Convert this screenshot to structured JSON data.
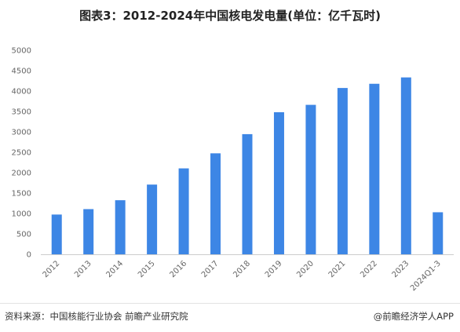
{
  "chart_data": {
    "type": "bar",
    "title": "图表3：2012-2024年中国核电发电量(单位：亿千瓦时)",
    "categories": [
      "2012",
      "2013",
      "2014",
      "2015",
      "2016",
      "2017",
      "2018",
      "2019",
      "2020",
      "2021",
      "2022",
      "2023",
      "2024Q1-3"
    ],
    "values": [
      974,
      1107,
      1325,
      1708,
      2105,
      2474,
      2944,
      3481,
      3662,
      4075,
      4178,
      4334,
      1030
    ],
    "ylim": [
      0,
      5000
    ],
    "yticks": [
      0,
      500,
      1000,
      1500,
      2000,
      2500,
      3000,
      3500,
      4000,
      4500,
      5000
    ],
    "bar_color": "#3d86e5",
    "grid": false,
    "legend": "none"
  },
  "footer": {
    "source": "资料来源：中国核能行业协会 前瞻产业研究院",
    "brand": "@前瞻经济学人APP"
  }
}
